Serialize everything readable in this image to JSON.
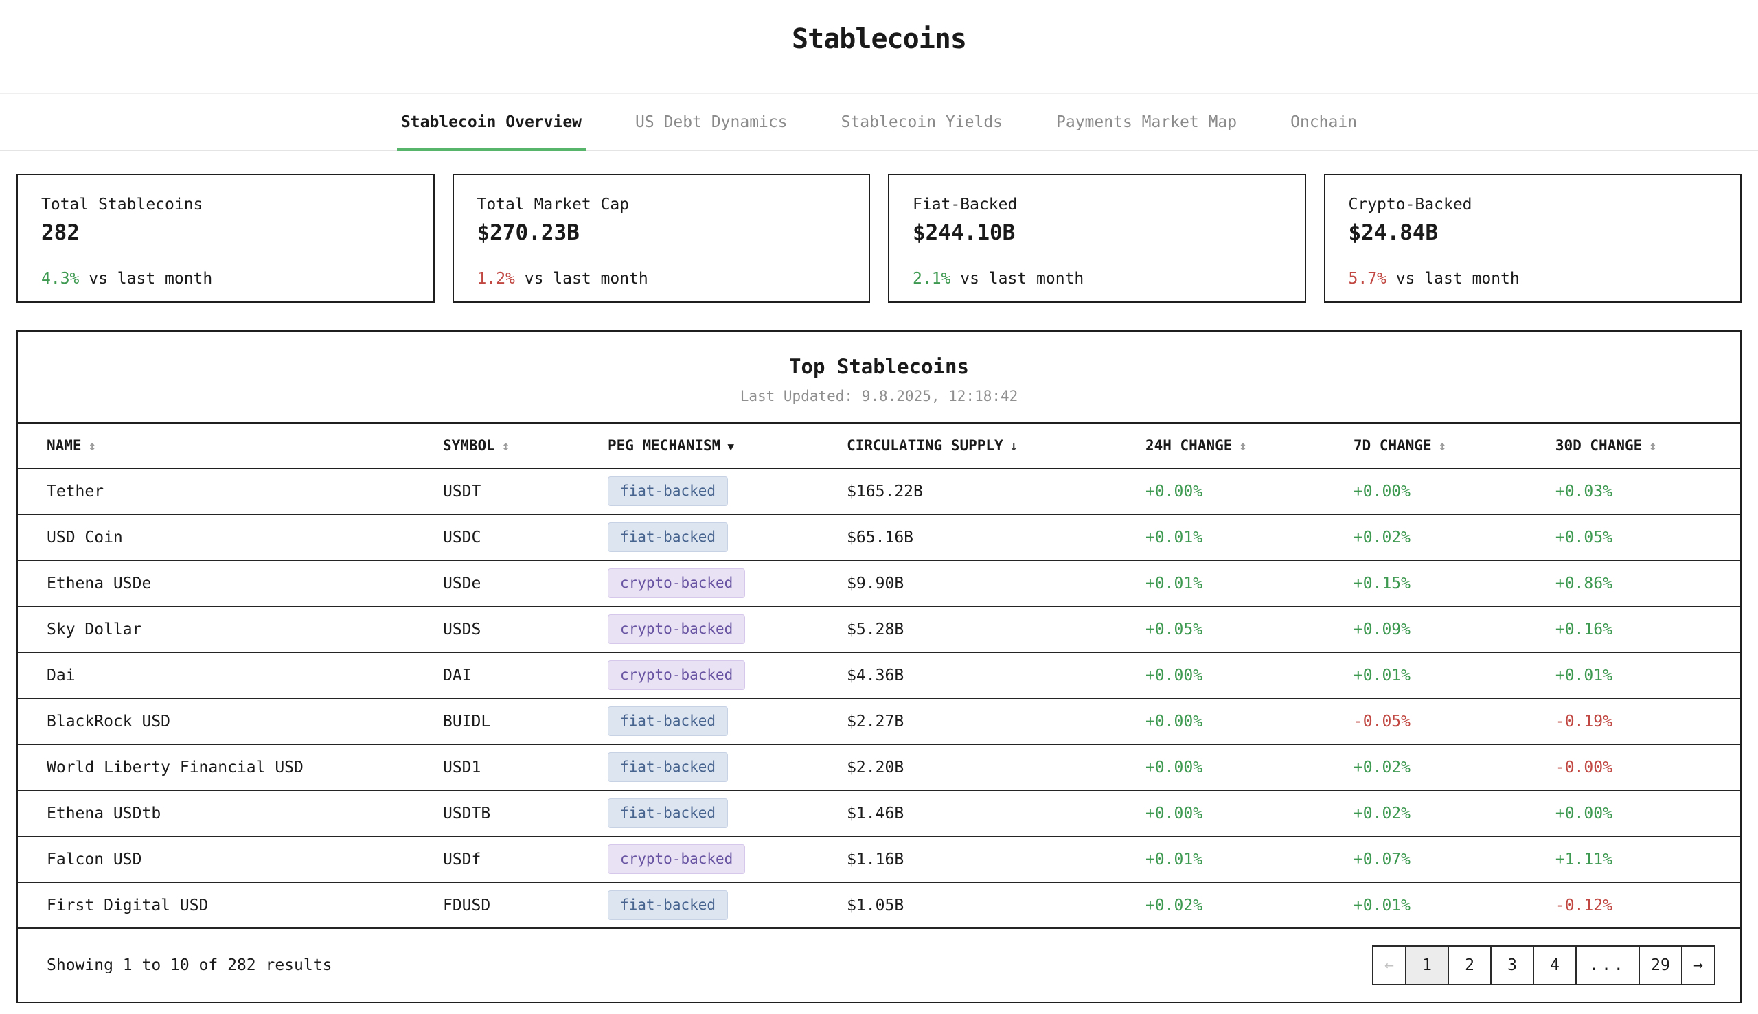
{
  "page": {
    "title": "Stablecoins"
  },
  "tabs": [
    {
      "label": "Stablecoin Overview",
      "active": true
    },
    {
      "label": "US Debt Dynamics",
      "active": false
    },
    {
      "label": "Stablecoin Yields",
      "active": false
    },
    {
      "label": "Payments Market Map",
      "active": false
    },
    {
      "label": "Onchain",
      "active": false
    }
  ],
  "stats": [
    {
      "label": "Total Stablecoins",
      "value": "282",
      "delta": "4.3%",
      "delta_direction": "up",
      "suffix": " vs last month"
    },
    {
      "label": "Total Market Cap",
      "value": "$270.23B",
      "delta": "1.2%",
      "delta_direction": "down",
      "suffix": " vs last month"
    },
    {
      "label": "Fiat-Backed",
      "value": "$244.10B",
      "delta": "2.1%",
      "delta_direction": "up",
      "suffix": " vs last month"
    },
    {
      "label": "Crypto-Backed",
      "value": "$24.84B",
      "delta": "5.7%",
      "delta_direction": "down",
      "suffix": " vs last month"
    }
  ],
  "colors": {
    "positive": "#3d9950",
    "negative": "#c14842",
    "tab_underline": "#57b56b",
    "fiat_badge_bg": "#dde5f1",
    "fiat_badge_text": "#47648f",
    "crypto_badge_bg": "#e9e2f4",
    "crypto_badge_text": "#6753a1"
  },
  "table": {
    "title": "Top Stablecoins",
    "last_updated": "Last Updated: 9.8.2025, 12:18:42",
    "columns": [
      {
        "label": "NAME",
        "icon": "↕",
        "icon_name": "sortable-icon"
      },
      {
        "label": "SYMBOL",
        "icon": "↕",
        "icon_name": "sortable-icon"
      },
      {
        "label": "PEG MECHANISM",
        "icon": "▼",
        "icon_name": "sorted-desc-icon"
      },
      {
        "label": "CIRCULATING SUPPLY",
        "icon": "↓",
        "icon_name": "sorted-down-icon"
      },
      {
        "label": "24H CHANGE",
        "icon": "↕",
        "icon_name": "sortable-icon"
      },
      {
        "label": "7D CHANGE",
        "icon": "↕",
        "icon_name": "sortable-icon"
      },
      {
        "label": "30D CHANGE",
        "icon": "↕",
        "icon_name": "sortable-icon"
      }
    ],
    "rows": [
      {
        "name": "Tether",
        "symbol": "USDT",
        "peg": "fiat-backed",
        "supply": "$165.22B",
        "change_24h": "+0.00%",
        "change_7d": "+0.00%",
        "change_30d": "+0.03%"
      },
      {
        "name": "USD Coin",
        "symbol": "USDC",
        "peg": "fiat-backed",
        "supply": "$65.16B",
        "change_24h": "+0.01%",
        "change_7d": "+0.02%",
        "change_30d": "+0.05%"
      },
      {
        "name": "Ethena USDe",
        "symbol": "USDe",
        "peg": "crypto-backed",
        "supply": "$9.90B",
        "change_24h": "+0.01%",
        "change_7d": "+0.15%",
        "change_30d": "+0.86%"
      },
      {
        "name": "Sky Dollar",
        "symbol": "USDS",
        "peg": "crypto-backed",
        "supply": "$5.28B",
        "change_24h": "+0.05%",
        "change_7d": "+0.09%",
        "change_30d": "+0.16%"
      },
      {
        "name": "Dai",
        "symbol": "DAI",
        "peg": "crypto-backed",
        "supply": "$4.36B",
        "change_24h": "+0.00%",
        "change_7d": "+0.01%",
        "change_30d": "+0.01%"
      },
      {
        "name": "BlackRock USD",
        "symbol": "BUIDL",
        "peg": "fiat-backed",
        "supply": "$2.27B",
        "change_24h": "+0.00%",
        "change_7d": "-0.05%",
        "change_30d": "-0.19%"
      },
      {
        "name": "World Liberty Financial USD",
        "symbol": "USD1",
        "peg": "fiat-backed",
        "supply": "$2.20B",
        "change_24h": "+0.00%",
        "change_7d": "+0.02%",
        "change_30d": "-0.00%"
      },
      {
        "name": "Ethena USDtb",
        "symbol": "USDTB",
        "peg": "fiat-backed",
        "supply": "$1.46B",
        "change_24h": "+0.00%",
        "change_7d": "+0.02%",
        "change_30d": "+0.00%"
      },
      {
        "name": "Falcon USD",
        "symbol": "USDf",
        "peg": "crypto-backed",
        "supply": "$1.16B",
        "change_24h": "+0.01%",
        "change_7d": "+0.07%",
        "change_30d": "+1.11%"
      },
      {
        "name": "First Digital USD",
        "symbol": "FDUSD",
        "peg": "fiat-backed",
        "supply": "$1.05B",
        "change_24h": "+0.02%",
        "change_7d": "+0.01%",
        "change_30d": "-0.12%"
      }
    ]
  },
  "footer": {
    "showing": "Showing 1 to 10 of 282 results",
    "pagination": [
      {
        "label": "←",
        "kind": "prev",
        "disabled": true,
        "active": false
      },
      {
        "label": "1",
        "kind": "page",
        "disabled": false,
        "active": true
      },
      {
        "label": "2",
        "kind": "page",
        "disabled": false,
        "active": false
      },
      {
        "label": "3",
        "kind": "page",
        "disabled": false,
        "active": false
      },
      {
        "label": "4",
        "kind": "page",
        "disabled": false,
        "active": false
      },
      {
        "label": "...",
        "kind": "ellipsis",
        "disabled": false,
        "active": false
      },
      {
        "label": "29",
        "kind": "page",
        "disabled": false,
        "active": false
      },
      {
        "label": "→",
        "kind": "next",
        "disabled": false,
        "active": false
      }
    ]
  }
}
